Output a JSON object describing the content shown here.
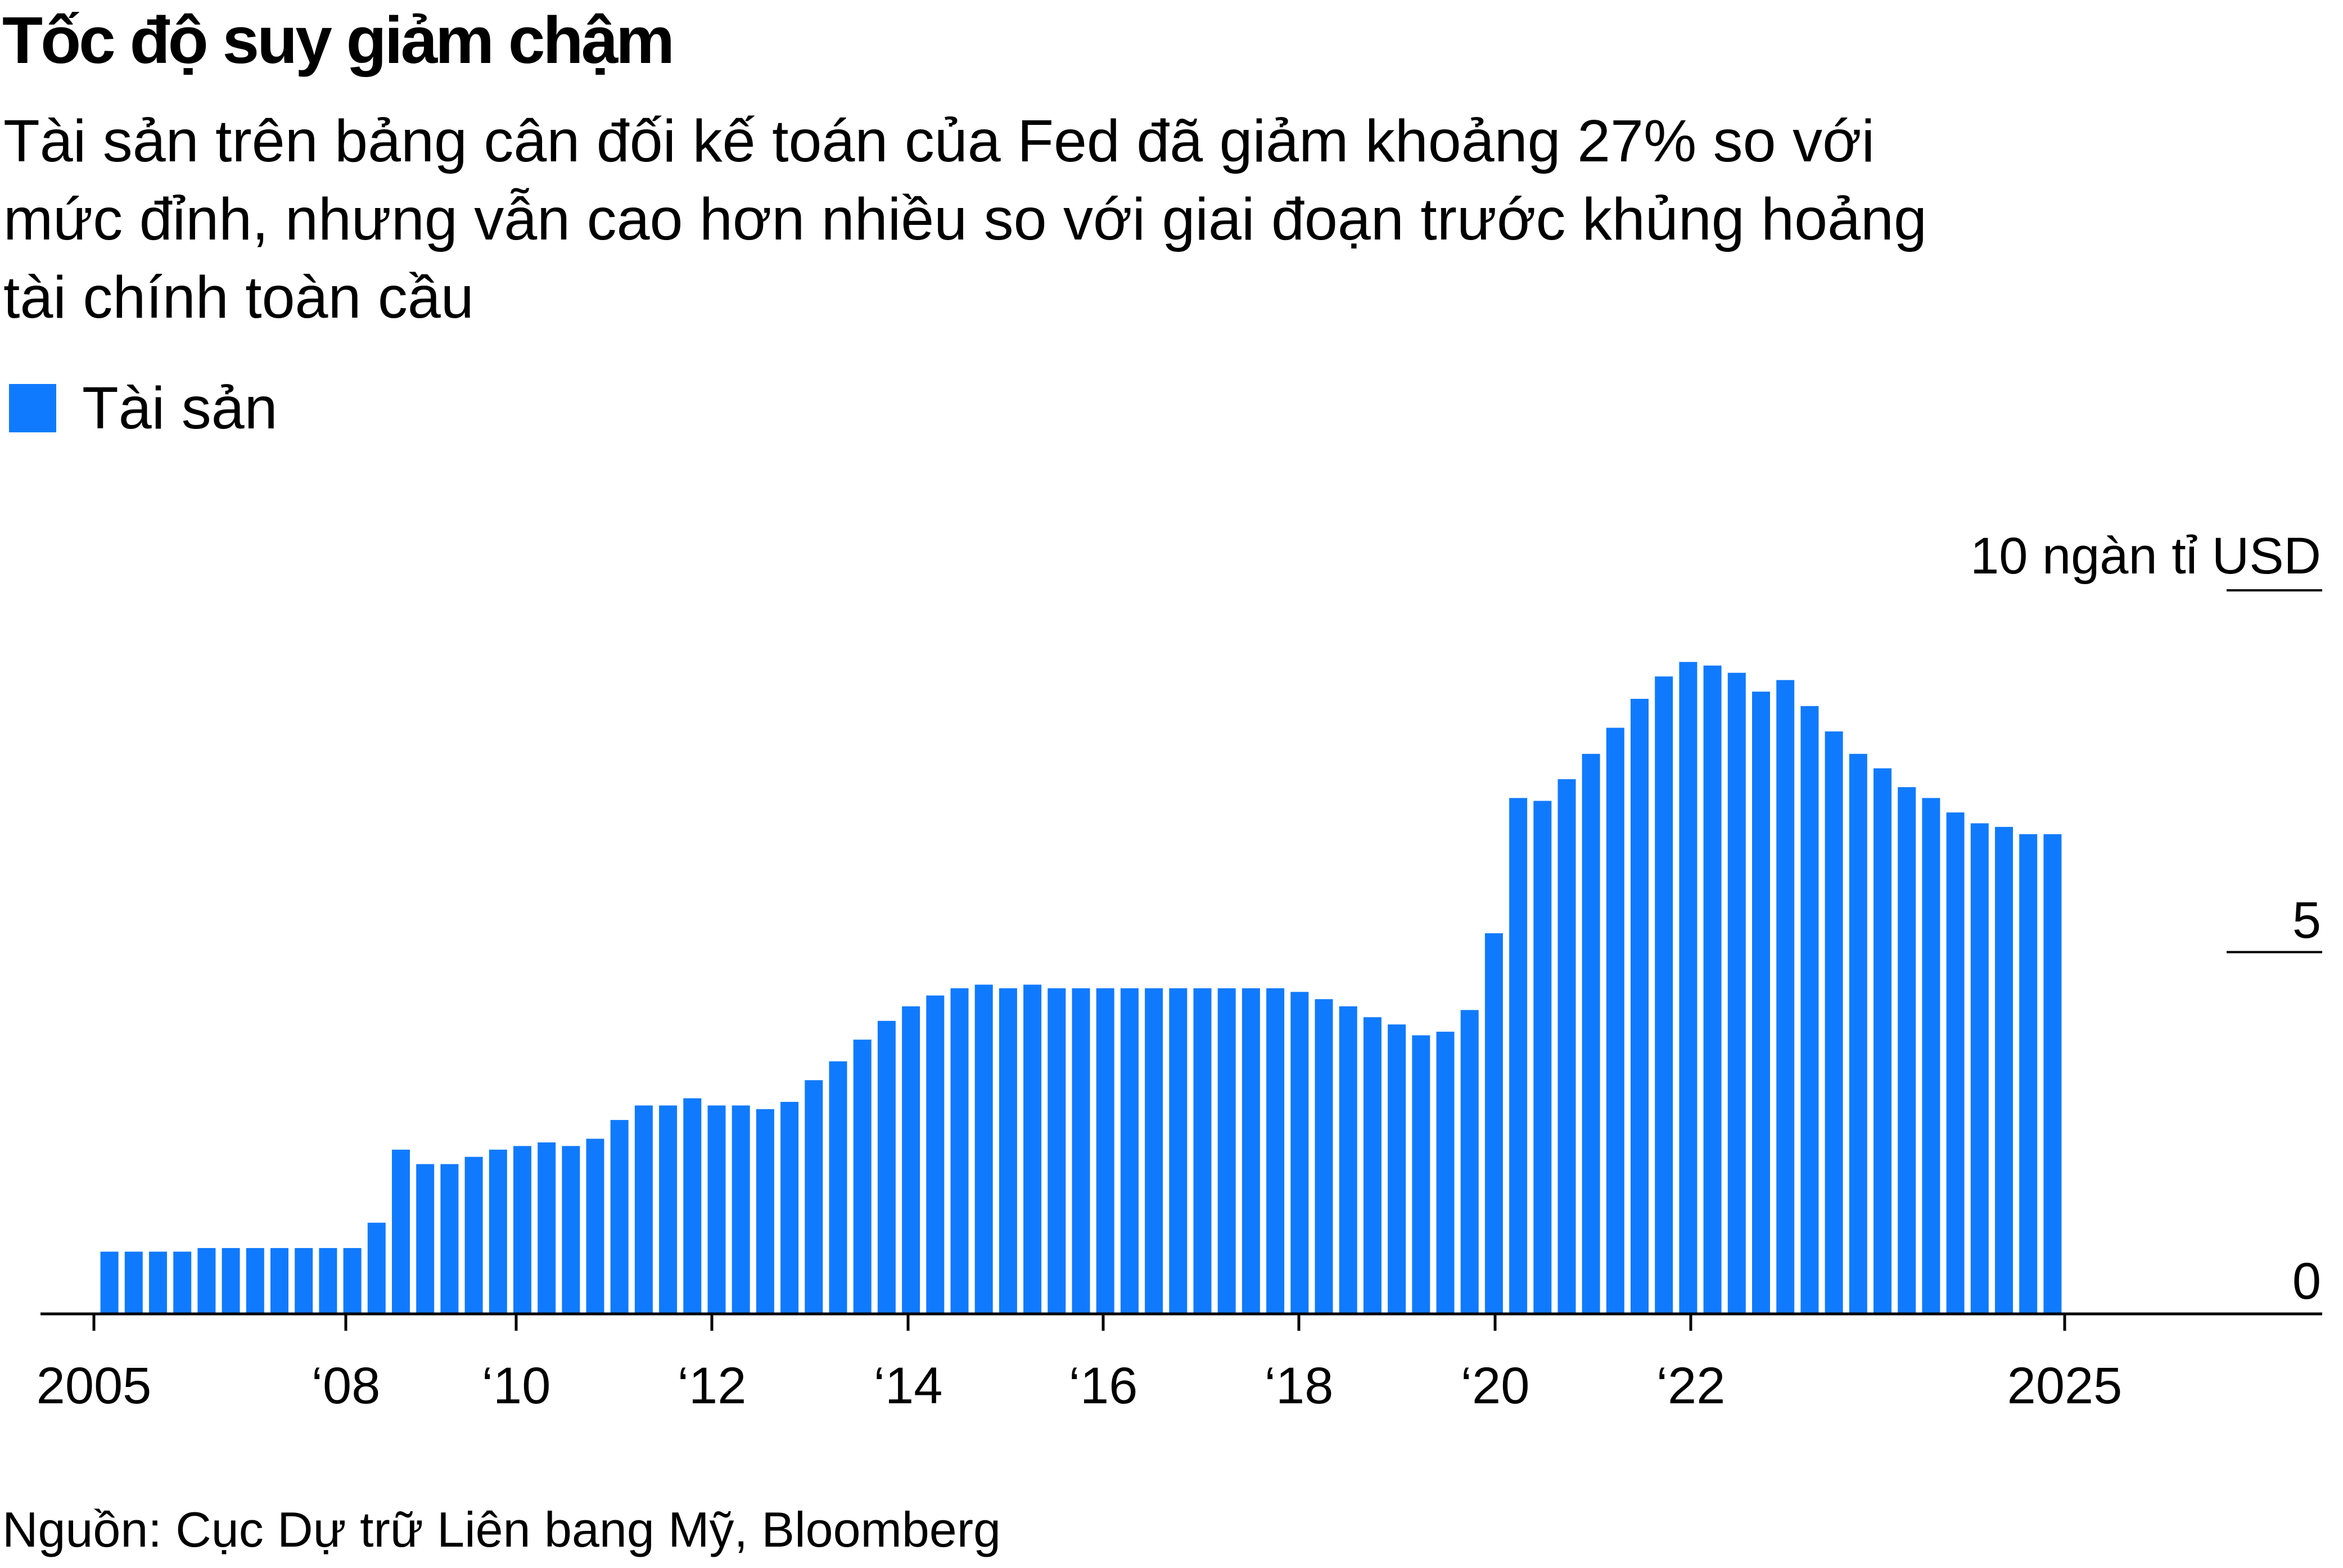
{
  "title": "Tốc độ suy giảm chậm",
  "subtitle_lines": [
    "Tài sản trên bảng cân đối kế toán của Fed đã giảm khoảng 27% so với",
    "mức đỉnh, nhưng vẫn cao hơn nhiều so với giai đoạn trước khủng hoảng",
    "tài chính toàn cầu"
  ],
  "source": "Nguồn: Cục Dự trữ Liên bang Mỹ, Bloomberg",
  "colors": {
    "bar": "#107AFF",
    "axis": "#000000"
  },
  "chart_data": {
    "type": "bar",
    "legend": {
      "entries": [
        "Tài sản"
      ],
      "placement": "top-left"
    },
    "series": [
      {
        "name": "Tài sản",
        "values": [
          0.86,
          0.86,
          0.86,
          0.86,
          0.91,
          0.91,
          0.91,
          0.91,
          0.91,
          0.91,
          0.91,
          1.26,
          2.27,
          2.07,
          2.07,
          2.17,
          2.27,
          2.32,
          2.37,
          2.32,
          2.42,
          2.68,
          2.88,
          2.88,
          2.98,
          2.88,
          2.88,
          2.83,
          2.93,
          3.23,
          3.49,
          3.79,
          4.05,
          4.25,
          4.4,
          4.5,
          4.55,
          4.5,
          4.55,
          4.5,
          4.5,
          4.5,
          4.5,
          4.5,
          4.5,
          4.5,
          4.5,
          4.5,
          4.5,
          4.45,
          4.35,
          4.25,
          4.1,
          4.0,
          3.85,
          3.9,
          4.2,
          5.26,
          7.13,
          7.09,
          7.39,
          7.74,
          8.1,
          8.5,
          8.81,
          9.01,
          8.96,
          8.86,
          8.6,
          8.76,
          8.4,
          8.05,
          7.74,
          7.54,
          7.28,
          7.13,
          6.93,
          6.78,
          6.73,
          6.63,
          6.63
        ]
      }
    ],
    "x_range": [
      "2005",
      "2025"
    ],
    "x_tick_labels": [
      "2005",
      "‘08",
      "‘10",
      "‘12",
      "‘14",
      "‘16",
      "‘18",
      "‘20",
      "‘22",
      "2025"
    ],
    "y_unit_label": "10 ngàn tỉ USD",
    "y_tick_labels": [
      "0",
      "5"
    ],
    "ylim": [
      0,
      10
    ],
    "y_axis_side": "right",
    "grid": false
  }
}
